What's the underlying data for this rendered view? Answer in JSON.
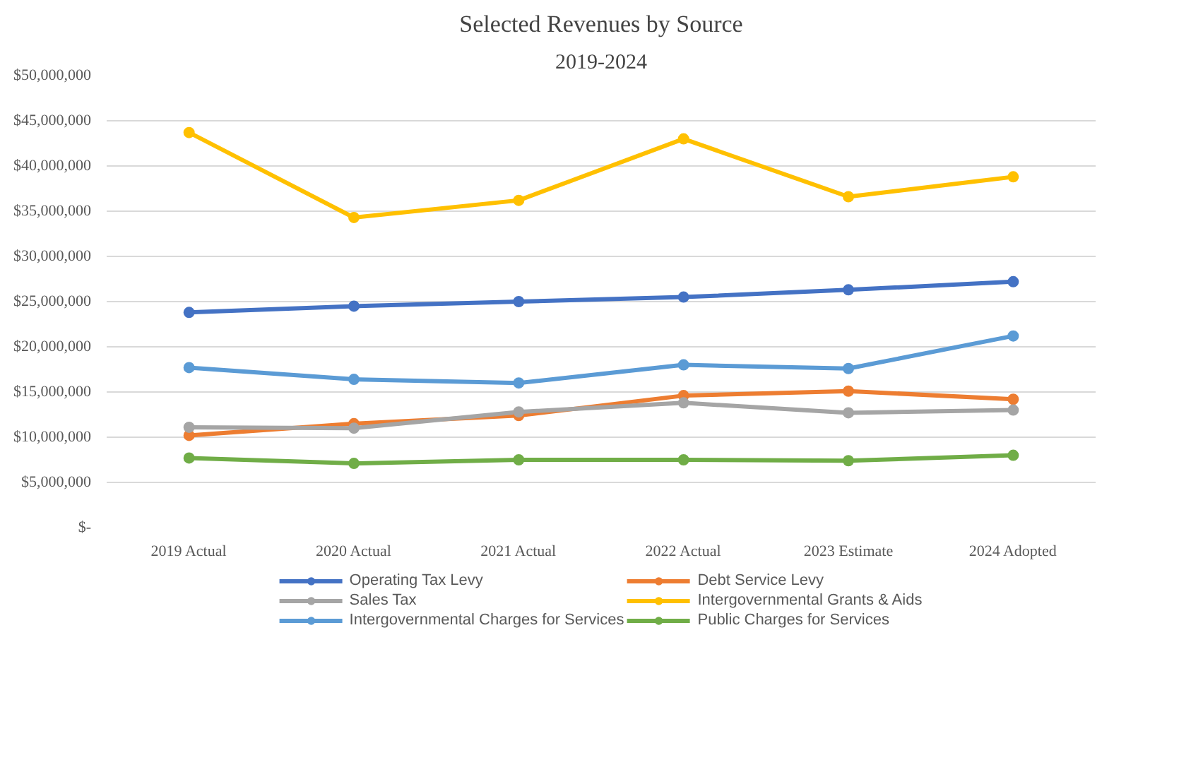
{
  "chart_data": {
    "type": "line",
    "title": "Selected Revenues by Source",
    "subtitle": "2019-2024",
    "categories": [
      "2019 Actual",
      "2020 Actual",
      "2021 Actual",
      "2022 Actual",
      "2023 Estimate",
      "2024 Adopted"
    ],
    "series": [
      {
        "name": "Operating Tax Levy",
        "color": "#4472c4",
        "values": [
          23800000,
          24500000,
          25000000,
          25500000,
          26300000,
          27200000
        ]
      },
      {
        "name": "Sales Tax",
        "color": "#a5a5a5",
        "values": [
          11100000,
          11000000,
          12800000,
          13800000,
          12700000,
          13000000
        ]
      },
      {
        "name": "Intergovernmental Charges for Services",
        "color": "#5b9bd5",
        "values": [
          17700000,
          16400000,
          16000000,
          18000000,
          17600000,
          21200000
        ]
      },
      {
        "name": "Debt Service Levy",
        "color": "#ed7d31",
        "values": [
          10200000,
          11500000,
          12400000,
          14600000,
          15100000,
          14200000
        ]
      },
      {
        "name": "Intergovernmental Grants & Aids",
        "color": "#ffc000",
        "values": [
          43700000,
          34300000,
          36200000,
          43000000,
          36600000,
          38800000
        ]
      },
      {
        "name": "Public Charges for Services",
        "color": "#70ad47",
        "values": [
          7700000,
          7100000,
          7500000,
          7500000,
          7400000,
          8000000
        ]
      }
    ],
    "ylim": [
      0,
      50000000
    ],
    "yticks": [
      {
        "value": 0,
        "label": "$-"
      },
      {
        "value": 5000000,
        "label": "$5,000,000"
      },
      {
        "value": 10000000,
        "label": "$10,000,000"
      },
      {
        "value": 15000000,
        "label": "$15,000,000"
      },
      {
        "value": 20000000,
        "label": "$20,000,000"
      },
      {
        "value": 25000000,
        "label": "$25,000,000"
      },
      {
        "value": 30000000,
        "label": "$30,000,000"
      },
      {
        "value": 35000000,
        "label": "$35,000,000"
      },
      {
        "value": 40000000,
        "label": "$40,000,000"
      },
      {
        "value": 45000000,
        "label": "$45,000,000"
      },
      {
        "value": 50000000,
        "label": "$50,000,000"
      }
    ],
    "grid": "y",
    "legend": "bottom",
    "marker": "circle",
    "line_style": "solid"
  }
}
